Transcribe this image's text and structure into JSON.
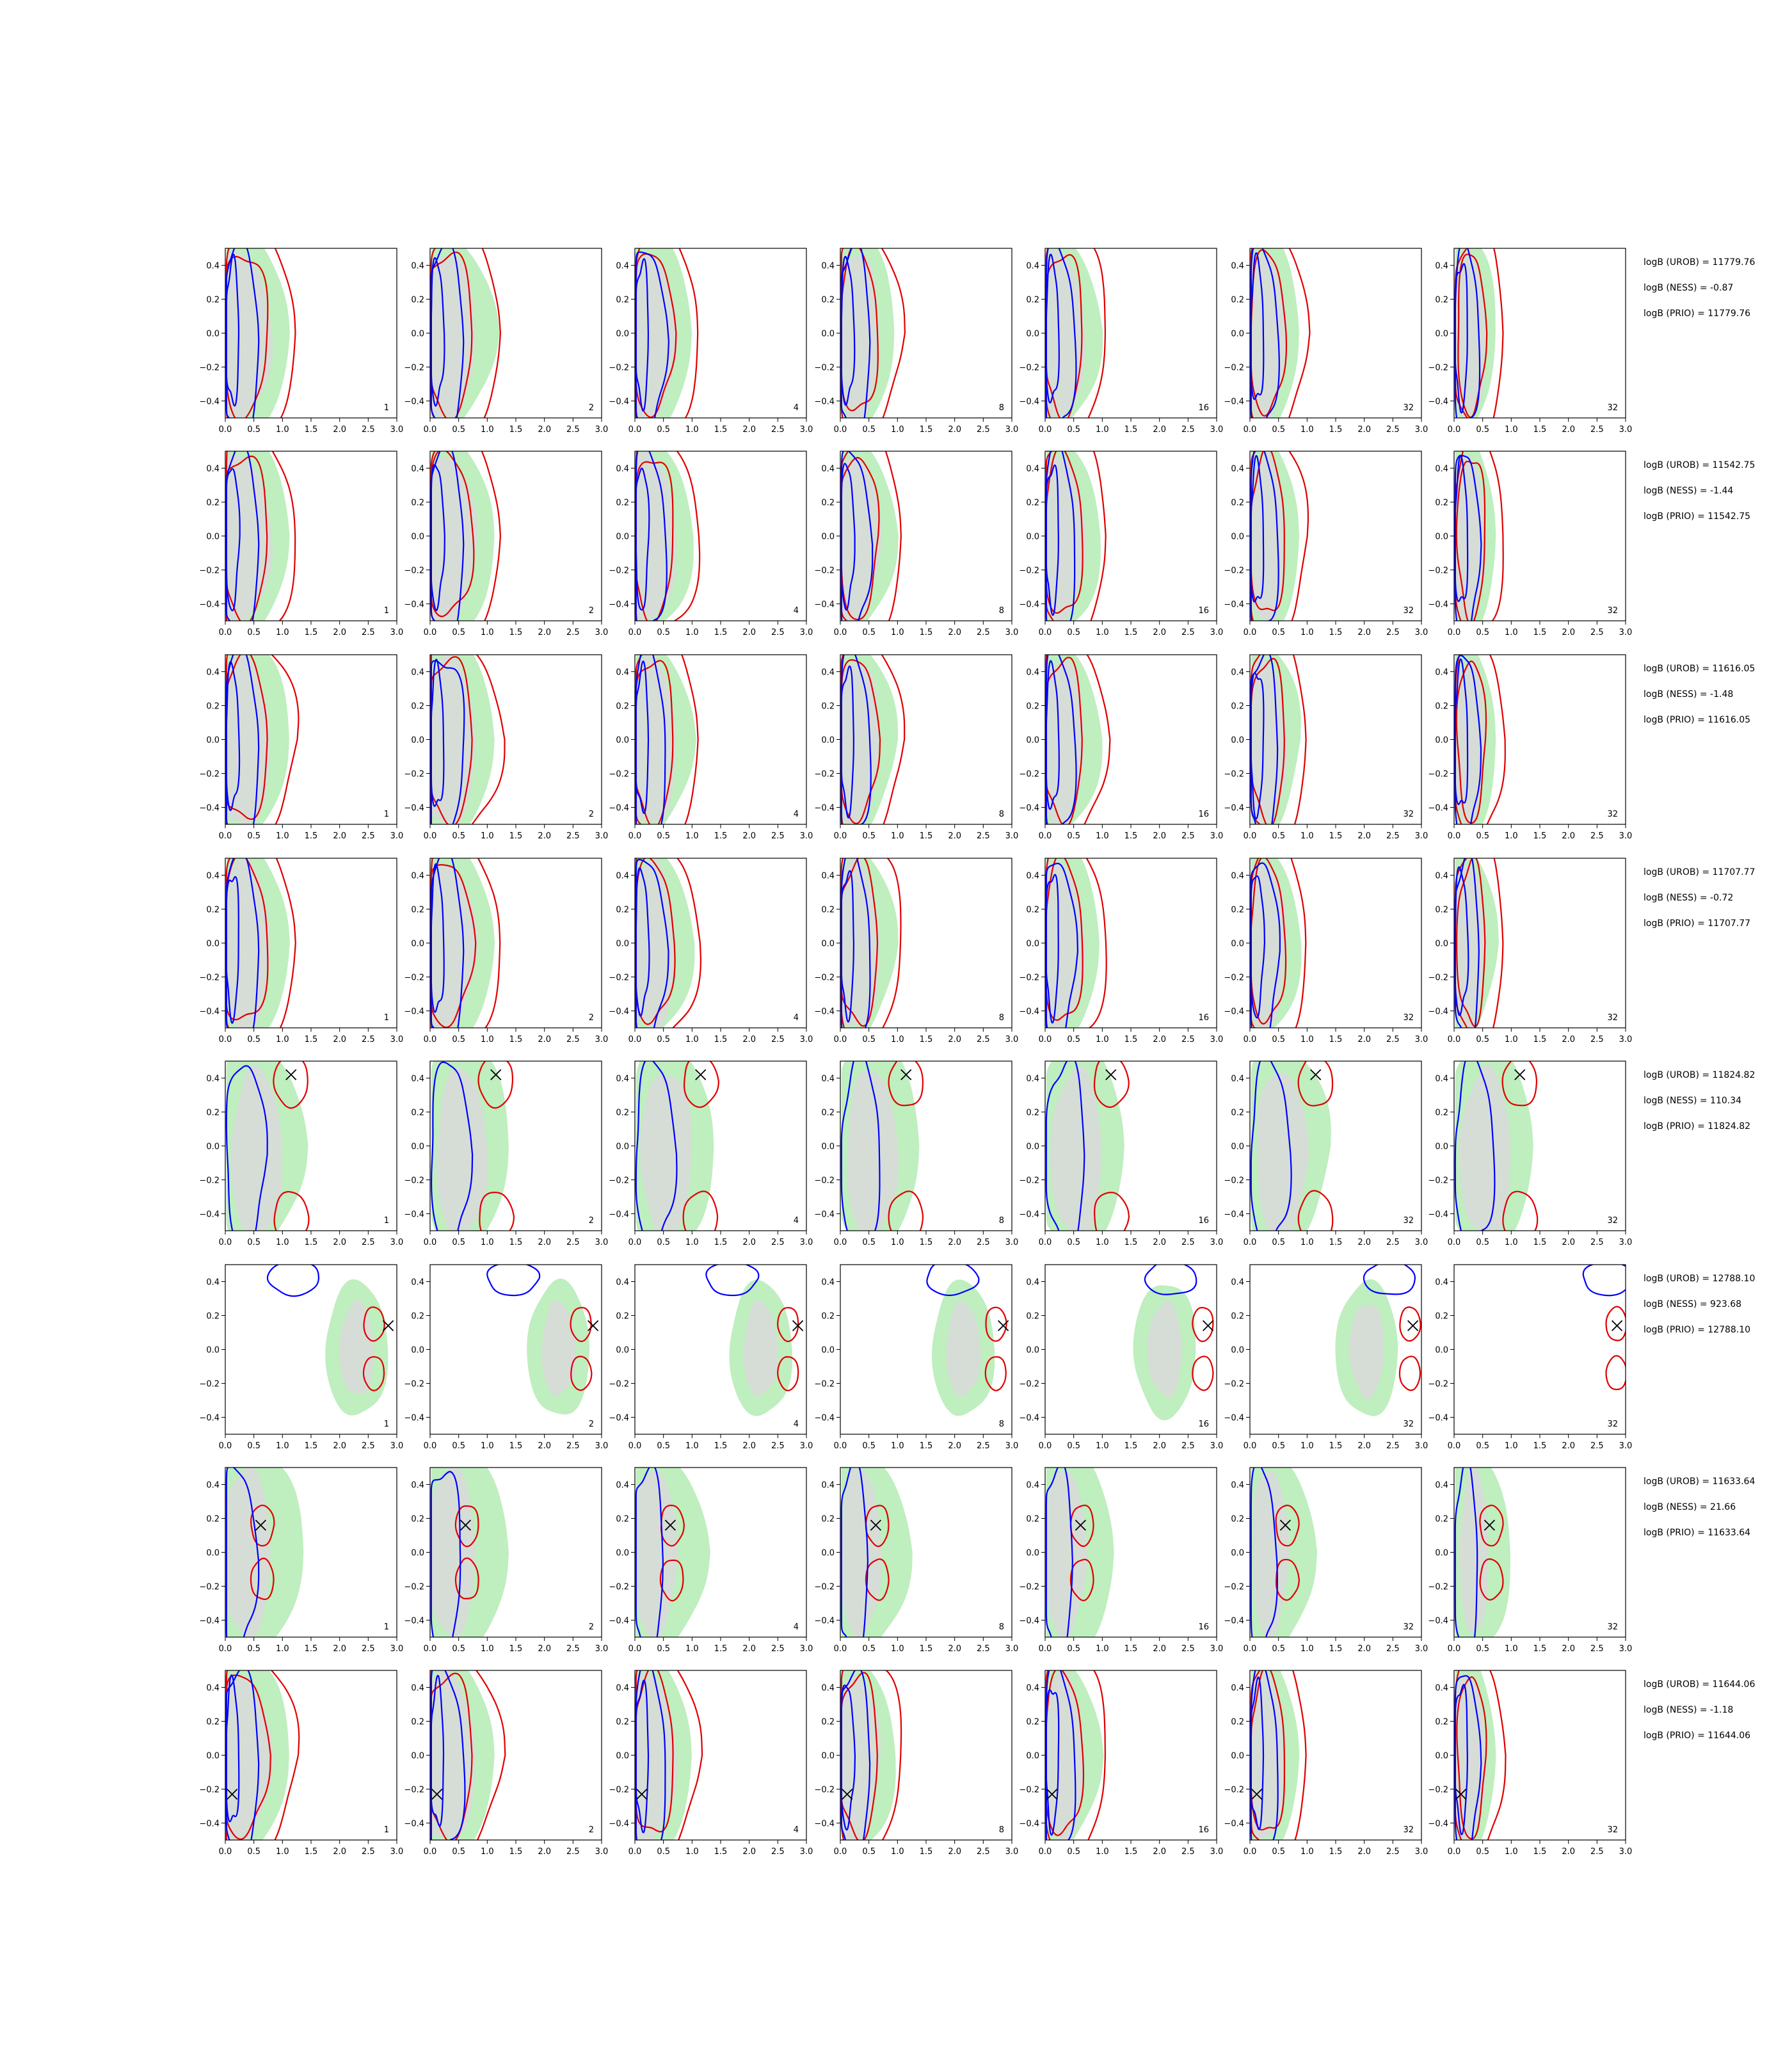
{
  "colors": {
    "green_fill": "#bfeebf",
    "grey_fill": "#d9d9d9",
    "blue": "#0000ff",
    "red": "#e00000",
    "marker": "#000000"
  },
  "chart_data": {
    "type": "contour-grid",
    "rows": 8,
    "cols": 7,
    "xlim": [
      0.0,
      3.0
    ],
    "ylim": [
      -0.5,
      0.5
    ],
    "x_ticks": [
      "0.0",
      "0.5",
      "1.0",
      "1.5",
      "2.0",
      "2.5",
      "3.0"
    ],
    "y_ticks": [
      "−0.4",
      "−0.2",
      "0.0",
      "0.2",
      "0.4"
    ],
    "panel_labels": [
      "1",
      "2",
      "4",
      "8",
      "16",
      "32",
      "32"
    ],
    "markers": [
      null,
      null,
      null,
      null,
      {
        "x": 1.15,
        "y": 0.42
      },
      {
        "x": 2.85,
        "y": 0.14
      },
      {
        "x": 0.62,
        "y": 0.16
      },
      {
        "x": 0.12,
        "y": -0.23
      }
    ],
    "logB": [
      [
        "logB (UROB) = 11779.76",
        "logB (NESS) = -0.87",
        "logB (PRIO) = 11779.76"
      ],
      [
        "logB (UROB) = 11542.75",
        "logB (NESS) = -1.44",
        "logB (PRIO) = 11542.75"
      ],
      [
        "logB (UROB) = 11616.05",
        "logB (NESS) = -1.48",
        "logB (PRIO) = 11616.05"
      ],
      [
        "logB (UROB) = 11707.77",
        "logB (NESS) = -0.72",
        "logB (PRIO) = 11707.77"
      ],
      [
        "logB (UROB) = 11824.82",
        "logB (NESS) = 110.34",
        "logB (PRIO) = 11824.82"
      ],
      [
        "logB (UROB) = 12788.10",
        "logB (NESS) = 923.68",
        "logB (PRIO) = 12788.10"
      ],
      [
        "logB (UROB) = 11633.64",
        "logB (NESS) = 21.66",
        "logB (PRIO) = 11633.64"
      ],
      [
        "logB (UROB) = 11644.06",
        "logB (NESS) = -1.18",
        "logB (PRIO) = 11644.06"
      ]
    ]
  }
}
